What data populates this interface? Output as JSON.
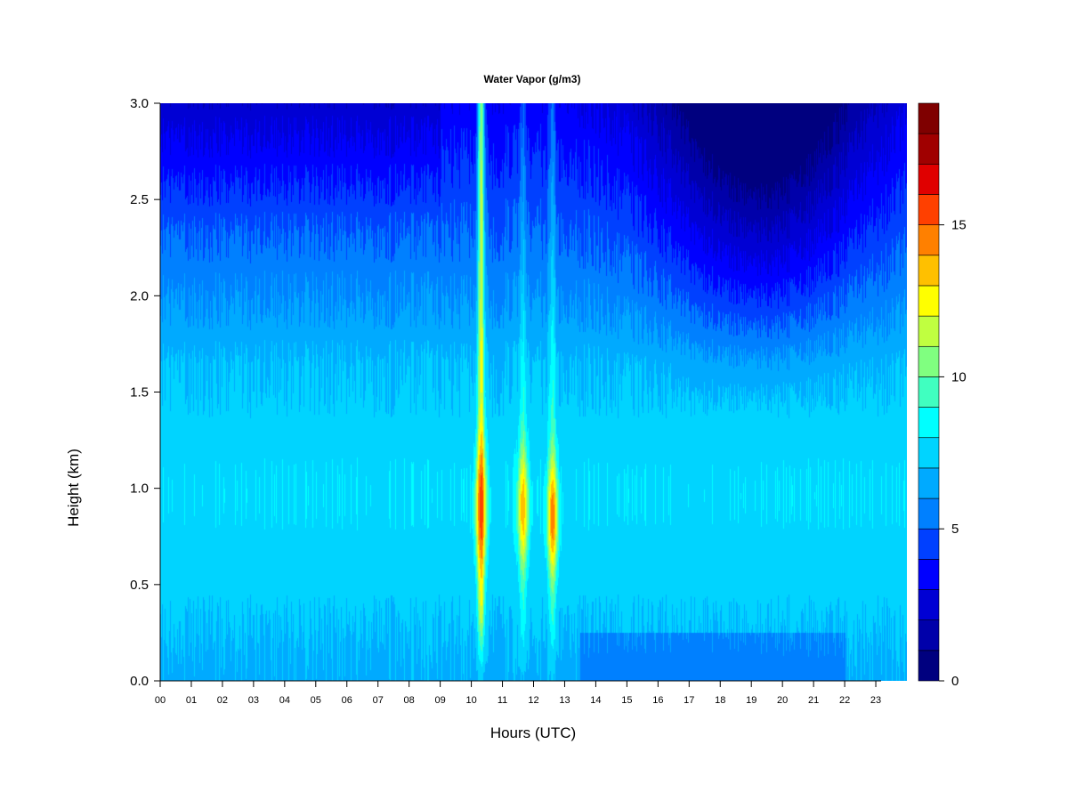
{
  "chart_data": {
    "type": "heatmap",
    "title": "Water Vapor (g/m3)",
    "xlabel": "Hours (UTC)",
    "ylabel": "Height (km)",
    "xlim": [
      0,
      24
    ],
    "ylim": [
      0,
      3
    ],
    "x_ticks": [
      "00",
      "01",
      "02",
      "03",
      "04",
      "05",
      "06",
      "07",
      "08",
      "09",
      "10",
      "11",
      "12",
      "13",
      "14",
      "15",
      "16",
      "17",
      "18",
      "19",
      "20",
      "21",
      "22",
      "23"
    ],
    "y_ticks": [
      "0.0",
      "0.5",
      "1.0",
      "1.5",
      "2.0",
      "2.5",
      "3.0"
    ],
    "colorbar": {
      "min": 0,
      "max": 17,
      "step": 1,
      "ticks": [
        {
          "value": 0,
          "label": "0"
        },
        {
          "value": 5,
          "label": "5"
        },
        {
          "value": 10,
          "label": "10"
        },
        {
          "value": 15,
          "label": "15"
        }
      ],
      "colors": [
        "#00007F",
        "#0000AA",
        "#0000D4",
        "#0000FF",
        "#0040FF",
        "#0080FF",
        "#00AAFF",
        "#00D4FF",
        "#00FFFF",
        "#40FFC0",
        "#80FF80",
        "#C0FF40",
        "#FFFF00",
        "#FFC000",
        "#FF8000",
        "#FF4000",
        "#E00000",
        "#A00000",
        "#7F0000"
      ]
    },
    "grid": false,
    "features": [
      {
        "type": "plume",
        "hour": 10.3,
        "peak_height_km": 0.9,
        "peak_value": 15
      },
      {
        "type": "plume",
        "hour": 11.65,
        "peak_height_km": 0.9,
        "peak_value": 13
      },
      {
        "type": "plume",
        "hour": 12.6,
        "peak_height_km": 0.85,
        "peak_value": 14
      },
      {
        "type": "dry_region",
        "hours": [
          14,
          23
        ],
        "height_km": [
          1.6,
          3.0
        ],
        "min_value": 0.5
      }
    ]
  }
}
